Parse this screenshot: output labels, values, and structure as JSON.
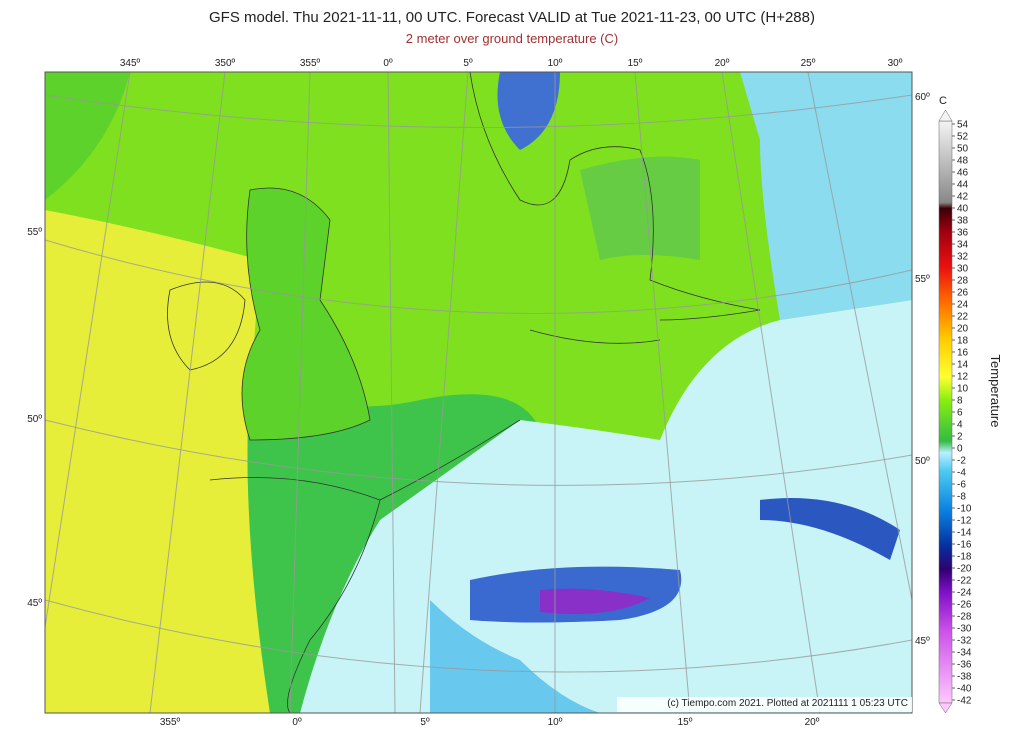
{
  "header": {
    "title": "GFS model. Thu 2021-11-11, 00 UTC. Forecast VALID at Tue 2021-11-23, 00 UTC (H+288)",
    "subtitle": "2 meter over ground temperature (C)"
  },
  "map": {
    "top_lon_labels": [
      "345º",
      "350º",
      "355º",
      "0º",
      "5º",
      "10º",
      "15º",
      "20º",
      "25º",
      "30º"
    ],
    "bottom_lon_labels": [
      "355º",
      "0º",
      "5º",
      "10º",
      "15º",
      "20º"
    ],
    "left_lat_labels": [
      "55º",
      "50º",
      "45º"
    ],
    "right_lat_labels": [
      "60º",
      "55º",
      "50º",
      "45º"
    ],
    "credit": "(c) Tiempo.com 2021. Plotted at 2021111 1 05:23 UTC"
  },
  "colorbar": {
    "unit": "C",
    "label": "Temperature",
    "ticks": [
      54,
      52,
      50,
      48,
      46,
      44,
      42,
      40,
      38,
      36,
      34,
      32,
      30,
      28,
      26,
      24,
      22,
      20,
      18,
      16,
      14,
      12,
      10,
      8,
      6,
      4,
      2,
      0,
      -2,
      -4,
      -6,
      -8,
      -10,
      -12,
      -14,
      -16,
      -18,
      -20,
      -22,
      -24,
      -26,
      -28,
      -30,
      -32,
      -34,
      -36,
      -38,
      -40,
      -42
    ]
  }
}
